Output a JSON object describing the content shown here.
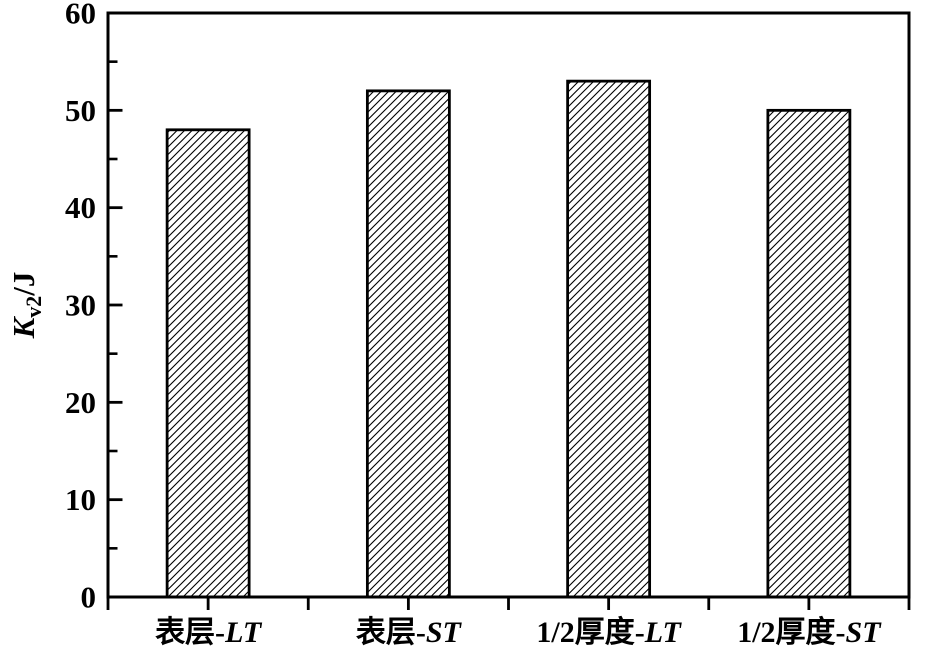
{
  "figure": {
    "background_color": "#ffffff",
    "foreground_color": "#000000",
    "title": ""
  },
  "chart_data": {
    "type": "bar",
    "title": "",
    "categories": [
      "表层-LT",
      "表层-ST",
      "1/2厚度-LT",
      "1/2厚度-ST"
    ],
    "category_parts": [
      {
        "prefix": "表层-",
        "italic_suffix": "LT"
      },
      {
        "prefix": "表层-",
        "italic_suffix": "ST"
      },
      {
        "prefix": "1/2厚度-",
        "italic_suffix": "LT"
      },
      {
        "prefix": "1/2厚度-",
        "italic_suffix": "ST"
      }
    ],
    "values": [
      48,
      52,
      53,
      50
    ],
    "xlabel": "",
    "ylabel": "Kv2/J",
    "ylabel_parts": {
      "italic_main": "K",
      "subscript": "v2",
      "rest": "/J"
    },
    "ylim": [
      0,
      60
    ],
    "yticks": [
      0,
      10,
      20,
      30,
      40,
      50,
      60
    ],
    "ytick_step": 10,
    "yminor_step": 5,
    "grid": false,
    "legend": null,
    "bar_style": "diagonal-hatch",
    "bar_outline_color": "#000000",
    "bar_hatch_color": "#000000",
    "axis_color": "#000000",
    "tick_label_color": "#000000"
  }
}
